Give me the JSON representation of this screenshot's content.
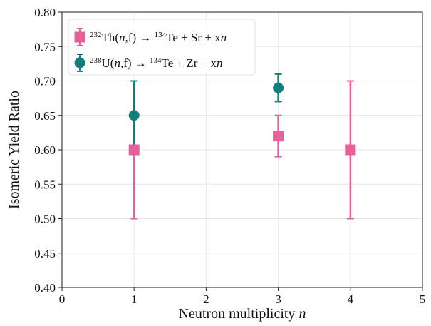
{
  "chart_data": {
    "type": "scatter",
    "xlabel_main": "Neutron multiplicity ",
    "xlabel_var": "n",
    "ylabel": "Isomeric Yield Ratio",
    "xlim": [
      0,
      5
    ],
    "ylim": [
      0.4,
      0.8
    ],
    "x_ticks": [
      0,
      1,
      2,
      3,
      4,
      5
    ],
    "y_ticks": [
      0.4,
      0.45,
      0.5,
      0.55,
      0.6,
      0.65,
      0.7,
      0.75,
      0.8
    ],
    "x_tick_labels": [
      "0",
      "1",
      "2",
      "3",
      "4",
      "5"
    ],
    "y_tick_labels": [
      "0.40",
      "0.45",
      "0.50",
      "0.55",
      "0.60",
      "0.65",
      "0.70",
      "0.75",
      "0.80"
    ],
    "grid": true,
    "legend_position": "top-left",
    "series": [
      {
        "label": {
          "mass": "232",
          "elem": "Th(",
          "var1": "n",
          "mid": ",f) → ",
          "mass2": "134",
          "rest": "Te + Sr + x",
          "var2": "n"
        },
        "marker": "square",
        "color": "#e5619a",
        "points": [
          {
            "x": 1,
            "y": 0.6,
            "err_low": 0.5,
            "err_high": 0.7
          },
          {
            "x": 3,
            "y": 0.62,
            "err_low": 0.59,
            "err_high": 0.65
          },
          {
            "x": 4,
            "y": 0.6,
            "err_low": 0.5,
            "err_high": 0.7
          }
        ]
      },
      {
        "label": {
          "mass": "238",
          "elem": "U(",
          "var1": "n",
          "mid": ",f) → ",
          "mass2": "134",
          "rest": "Te + Zr + x",
          "var2": "n"
        },
        "marker": "circle",
        "color": "#137f7d",
        "points": [
          {
            "x": 1,
            "y": 0.65,
            "err_low": 0.6,
            "err_high": 0.7
          },
          {
            "x": 3,
            "y": 0.69,
            "err_low": 0.67,
            "err_high": 0.71
          }
        ]
      }
    ]
  }
}
